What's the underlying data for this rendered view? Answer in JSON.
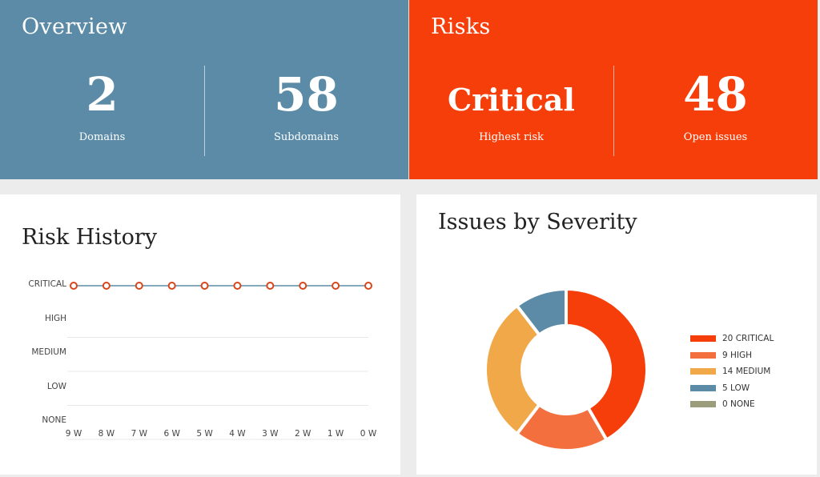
{
  "overview": {
    "title": "Overview",
    "stats": [
      {
        "value": "2",
        "label": "Domains"
      },
      {
        "value": "58",
        "label": "Subdomains"
      }
    ],
    "color": "#5b8ba6"
  },
  "risks": {
    "title": "Risks",
    "stats": [
      {
        "value": "Critical",
        "label": "Highest risk"
      },
      {
        "value": "48",
        "label": "Open issues"
      }
    ],
    "color": "#f63e0a"
  },
  "risk_history": {
    "title": "Risk History",
    "levels": [
      "CRITICAL",
      "HIGH",
      "MEDIUM",
      "LOW",
      "NONE"
    ],
    "weeks": [
      "9 W",
      "8 W",
      "7 W",
      "6 W",
      "5 W",
      "4 W",
      "3 W",
      "2 W",
      "1 W",
      "0 W"
    ],
    "values": [
      "CRITICAL",
      "CRITICAL",
      "CRITICAL",
      "CRITICAL",
      "CRITICAL",
      "CRITICAL",
      "CRITICAL",
      "CRITICAL",
      "CRITICAL",
      "CRITICAL"
    ]
  },
  "issues_by_severity": {
    "title": "Issues by Severity",
    "legend": [
      "20 CRITICAL",
      "9 HIGH",
      "14 MEDIUM",
      "5 LOW",
      "0 NONE"
    ]
  },
  "chart_data": [
    {
      "type": "line",
      "title": "Risk History",
      "x": [
        "9 W",
        "8 W",
        "7 W",
        "6 W",
        "5 W",
        "4 W",
        "3 W",
        "2 W",
        "1 W",
        "0 W"
      ],
      "y_categories": [
        "NONE",
        "LOW",
        "MEDIUM",
        "HIGH",
        "CRITICAL"
      ],
      "series": [
        {
          "values": [
            "CRITICAL",
            "CRITICAL",
            "CRITICAL",
            "CRITICAL",
            "CRITICAL",
            "CRITICAL",
            "CRITICAL",
            "CRITICAL",
            "CRITICAL",
            "CRITICAL"
          ]
        }
      ],
      "grid": true,
      "line_color": "#5b8ba6",
      "marker_color": "#d9461c"
    },
    {
      "type": "pie",
      "title": "Issues by Severity",
      "donut": true,
      "categories": [
        "CRITICAL",
        "HIGH",
        "MEDIUM",
        "LOW",
        "NONE"
      ],
      "values": [
        20,
        9,
        14,
        5,
        0
      ],
      "colors": [
        "#f63e0a",
        "#f3703e",
        "#f0a848",
        "#5b8ba6",
        "#9a9c7a"
      ],
      "legend": "right"
    }
  ]
}
